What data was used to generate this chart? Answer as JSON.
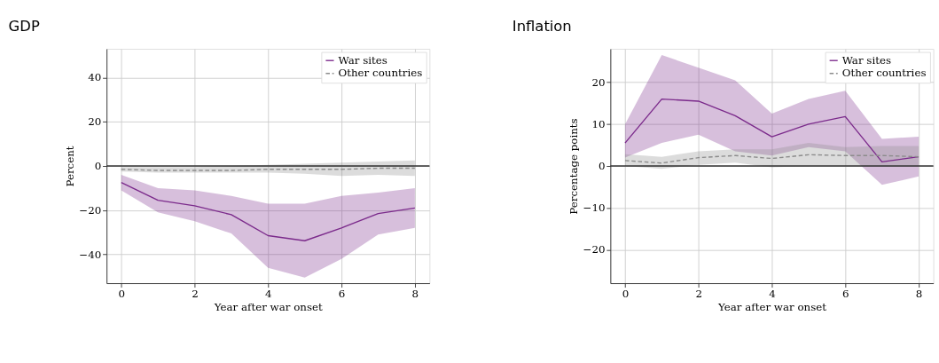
{
  "chart_data": [
    {
      "type": "line",
      "title": "GDP",
      "xlabel": "Year after war onset",
      "ylabel": "Percent",
      "x": [
        0,
        1,
        2,
        3,
        4,
        5,
        6,
        7,
        8
      ],
      "xlim": [
        -0.4,
        8.4
      ],
      "xticks": [
        0,
        2,
        4,
        6,
        8
      ],
      "ylim": [
        -53,
        53
      ],
      "yticks": [
        -40,
        -20,
        0,
        20,
        40
      ],
      "grid": true,
      "legend": "top right",
      "series": [
        {
          "name": "War sites",
          "color": "#7b2a8b",
          "line_style": "solid",
          "values": [
            -7.5,
            -15.5,
            -18,
            -22,
            -31.5,
            -33.8,
            -28,
            -21.5,
            -19
          ],
          "lower": [
            -11,
            -21,
            -25,
            -30.5,
            -46,
            -50.5,
            -42,
            -31,
            -28
          ],
          "upper": [
            -4,
            -10,
            -11,
            -13.5,
            -17,
            -17,
            -13.5,
            -12,
            -10
          ]
        },
        {
          "name": "Other countries",
          "color": "#8c8c8c",
          "line_style": "dashed",
          "values": [
            -1.5,
            -2,
            -2,
            -2,
            -1.5,
            -1.5,
            -1.5,
            -1,
            -1
          ],
          "lower": [
            -2.5,
            -3,
            -3,
            -3,
            -3,
            -3.5,
            -4.5,
            -4,
            -4.5
          ],
          "upper": [
            -0.5,
            -0.5,
            -0.5,
            0,
            0.5,
            1,
            1.5,
            2,
            2.5
          ]
        }
      ],
      "ref_lines": [
        {
          "axis": "y",
          "value": 0,
          "color": "#333333"
        }
      ]
    },
    {
      "type": "line",
      "title": "Inflation",
      "xlabel": "Year after war onset",
      "ylabel": "Percentage points",
      "x": [
        0,
        1,
        2,
        3,
        4,
        5,
        6,
        7,
        8
      ],
      "xlim": [
        -0.4,
        8.4
      ],
      "xticks": [
        0,
        2,
        4,
        6,
        8
      ],
      "ylim": [
        -28,
        28
      ],
      "yticks": [
        -20,
        -10,
        0,
        10,
        20
      ],
      "grid": true,
      "legend": "top right",
      "series": [
        {
          "name": "War sites",
          "color": "#7b2a8b",
          "line_style": "solid",
          "values": [
            5.5,
            16,
            15.5,
            12,
            7,
            10,
            11.8,
            1,
            2.2
          ],
          "lower": [
            2,
            5.5,
            7.5,
            3.5,
            2.5,
            4.5,
            3.5,
            -4.5,
            -2.5
          ],
          "upper": [
            10,
            26.5,
            23.5,
            20.5,
            12.5,
            16,
            18,
            6.5,
            7
          ]
        },
        {
          "name": "Other countries",
          "color": "#8c8c8c",
          "line_style": "dashed",
          "values": [
            1.3,
            0.7,
            2,
            2.5,
            1.8,
            2.7,
            2.5,
            2.5,
            2.2
          ],
          "lower": [
            0,
            -0.7,
            0.3,
            0.8,
            -0.3,
            0,
            0,
            0,
            0
          ],
          "upper": [
            2.8,
            2.2,
            3.5,
            4,
            4,
            5.5,
            4.5,
            4.8,
            4.8
          ]
        }
      ],
      "ref_lines": [
        {
          "axis": "y",
          "value": 0,
          "color": "#333333"
        }
      ]
    }
  ]
}
